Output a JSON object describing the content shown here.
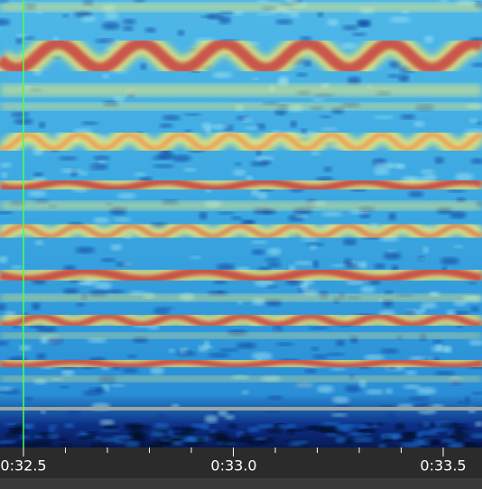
{
  "timeline": {
    "labels": [
      "0:32.5",
      "0:33.0",
      "0:33.5"
    ]
  }
}
